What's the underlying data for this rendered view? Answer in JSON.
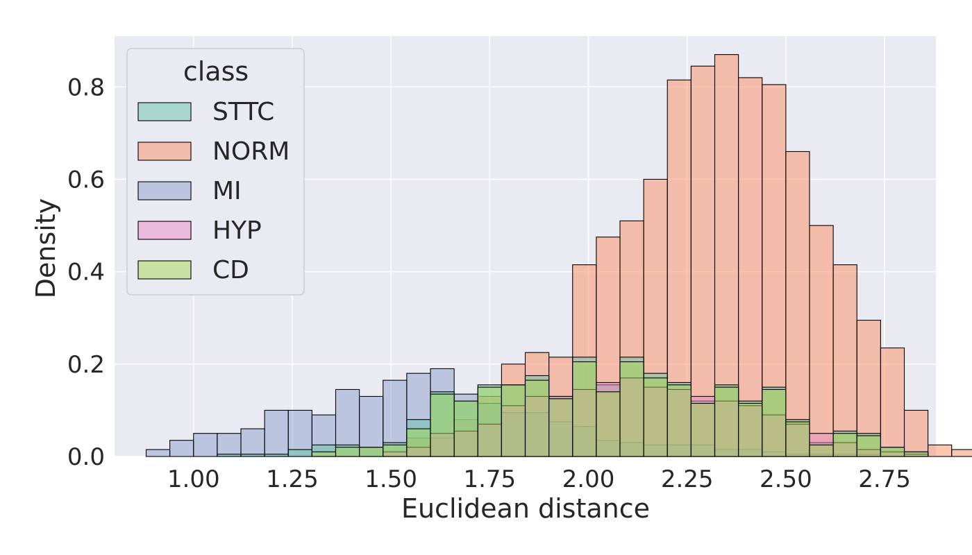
{
  "chart_data": {
    "type": "histogram",
    "xlabel": "Euclidean distance",
    "ylabel": "Density",
    "xlim": [
      0.8,
      2.88
    ],
    "ylim": [
      0,
      0.91
    ],
    "x_ticks": [
      1.0,
      1.25,
      1.5,
      1.75,
      2.0,
      2.25,
      2.5,
      2.75
    ],
    "x_tick_labels": [
      "1.00",
      "1.25",
      "1.50",
      "1.75",
      "2.00",
      "2.25",
      "2.50",
      "2.75"
    ],
    "y_ticks": [
      0.0,
      0.2,
      0.4,
      0.6,
      0.8
    ],
    "y_tick_labels": [
      "0.0",
      "0.2",
      "0.4",
      "0.6",
      "0.8"
    ],
    "bin_start": 0.88,
    "bin_width": 0.06,
    "grid": true,
    "legend": {
      "title": "class",
      "position": "top-left",
      "entries": [
        "STTC",
        "NORM",
        "MI",
        "HYP",
        "CD"
      ]
    },
    "series": [
      {
        "name": "NORM",
        "color": "#fc8d62",
        "values": [
          0,
          0,
          0,
          0,
          0,
          0,
          0,
          0,
          0,
          0,
          0,
          0.04,
          0.04,
          0.08,
          0.13,
          0.2,
          0.225,
          0.215,
          0.415,
          0.475,
          0.51,
          0.6,
          0.815,
          0.845,
          0.87,
          0.82,
          0.805,
          0.66,
          0.5,
          0.415,
          0.295,
          0.235,
          0.1,
          0.025,
          0.015
        ]
      },
      {
        "name": "MI",
        "color": "#8da0cb",
        "values": [
          0.015,
          0.035,
          0.05,
          0.05,
          0.06,
          0.1,
          0.1,
          0.09,
          0.145,
          0.13,
          0.165,
          0.18,
          0.19,
          0.135,
          0.115,
          0.095,
          0.095,
          0.075,
          0.065,
          0.035,
          0.03,
          0.025,
          0.025,
          0.025,
          0.015,
          0.015,
          0.01,
          0.005,
          0.005,
          0.005,
          0.005,
          0,
          0,
          0,
          0
        ]
      },
      {
        "name": "STTC",
        "color": "#66c2a5",
        "values": [
          0,
          0,
          0,
          0.005,
          0.005,
          0.005,
          0.015,
          0.025,
          0.025,
          0.02,
          0.03,
          0.08,
          0.14,
          0.12,
          0.155,
          0.155,
          0.175,
          0.13,
          0.215,
          0.155,
          0.215,
          0.18,
          0.16,
          0.12,
          0.155,
          0.12,
          0.15,
          0.08,
          0.03,
          0.055,
          0.05,
          0.02,
          0.01,
          0,
          0
        ]
      },
      {
        "name": "HYP",
        "color": "#e78ac3",
        "values": [
          0,
          0,
          0,
          0,
          0,
          0,
          0,
          0,
          0,
          0,
          0.01,
          0.02,
          0.05,
          0.055,
          0.07,
          0.11,
          0.13,
          0.13,
          0.145,
          0.16,
          0.17,
          0.15,
          0.145,
          0.13,
          0.12,
          0.11,
          0.09,
          0.07,
          0.05,
          0.03,
          0.015,
          0.01,
          0.005,
          0,
          0
        ]
      },
      {
        "name": "CD",
        "color": "#a6d854",
        "values": [
          0,
          0,
          0,
          0,
          0,
          0,
          0,
          0.01,
          0.02,
          0.02,
          0.025,
          0.06,
          0.135,
          0.12,
          0.15,
          0.155,
          0.165,
          0.125,
          0.205,
          0.14,
          0.205,
          0.17,
          0.155,
          0.115,
          0.15,
          0.115,
          0.145,
          0.075,
          0.025,
          0.05,
          0.045,
          0.02,
          0.01,
          0,
          0
        ]
      }
    ]
  }
}
